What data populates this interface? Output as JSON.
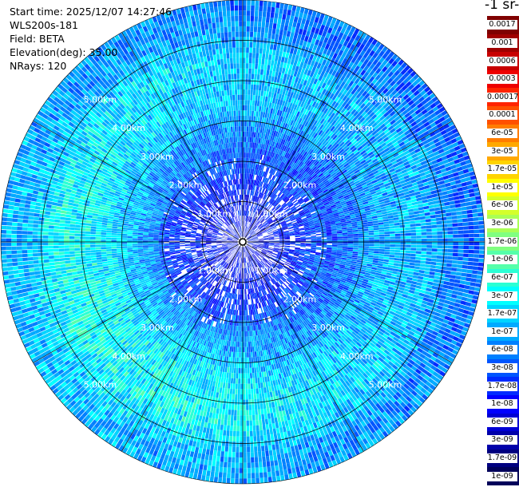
{
  "header": {
    "start_time": "Start time: 2025/12/07 14:27:46",
    "instrument": "WLS200s-181",
    "field": "Field: BETA",
    "elevation": "Elevation(deg): 35.00",
    "nrays": "NRays: 120"
  },
  "colorbar": {
    "unit_label": "-1 sr-",
    "labels": [
      "0.0017",
      "0.001",
      "0.0006",
      "0.0003",
      "0.00017",
      "0.0001",
      "6e-05",
      "3e-05",
      "1.7e-05",
      "1e-05",
      "6e-06",
      "3e-06",
      "1.7e-06",
      "1e-06",
      "6e-07",
      "3e-07",
      "1.7e-07",
      "1e-07",
      "6e-08",
      "3e-08",
      "1.7e-08",
      "1e-08",
      "6e-09",
      "3e-09",
      "1.7e-09",
      "1e-09"
    ],
    "colors": [
      "#7f0000",
      "#a00000",
      "#c80000",
      "#ee0000",
      "#ff2400",
      "#ff5000",
      "#ff7c00",
      "#ffa800",
      "#ffd400",
      "#ffff00",
      "#d4ff2b",
      "#aaff55",
      "#80ff80",
      "#55ffaa",
      "#2bffd4",
      "#00ffff",
      "#00d4ff",
      "#00aaff",
      "#0080ff",
      "#0055ff",
      "#002bff",
      "#0000ff",
      "#0000d4",
      "#0000aa",
      "#000080",
      "#00005a"
    ]
  },
  "chart_data": {
    "type": "heatmap",
    "projection": "polar-ppi",
    "field": "BETA",
    "nrays": 120,
    "max_range_km": 6,
    "range_ring_labels": [
      "1.00km",
      "2.00km",
      "3.00km",
      "4.00km",
      "5.00km"
    ],
    "range_rings_km": [
      1,
      2,
      3,
      4,
      5
    ],
    "sector_lines_deg": [
      0,
      30,
      60,
      90,
      120,
      150,
      180,
      210,
      240,
      270,
      300,
      330
    ],
    "value_scale": "log",
    "value_range": [
      1e-09,
      0.0017
    ],
    "radial_profile": [
      {
        "range_km": 0.5,
        "beta": 1e-08
      },
      {
        "range_km": 1.5,
        "beta": 1.7e-08
      },
      {
        "range_km": 2.5,
        "beta": 6e-08
      },
      {
        "range_km": 3.5,
        "beta": 1.7e-07
      },
      {
        "range_km": 4.5,
        "beta": 2e-07
      },
      {
        "range_km": 5.5,
        "beta": 7e-08
      }
    ]
  }
}
